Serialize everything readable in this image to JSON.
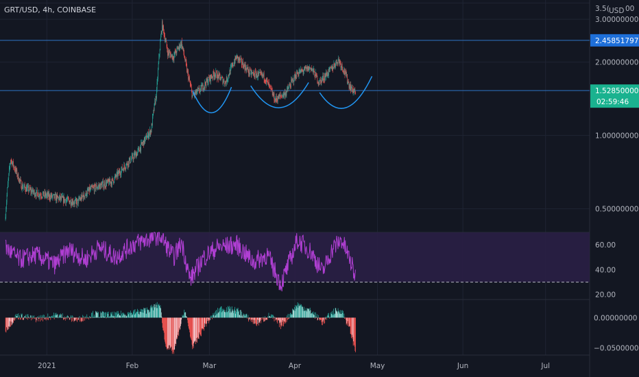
{
  "header": {
    "symbol_label": "GRT/USD, 4h, COINBASE"
  },
  "colors": {
    "background": "#131722",
    "grid": "#1f2433",
    "up": "#26a69a",
    "down": "#ef5350",
    "levels": "#2f75c6",
    "pattern": "#2196f3",
    "rsi_line": "#b03fd3",
    "rsi_band": "#2a1f45",
    "current_tag": "#1ab28f",
    "resistance_tag": "#1e6fd9"
  },
  "chart_data": [
    {
      "type": "candlestick",
      "currency": "USD",
      "y_ticks": [
        "3.5(",
        "3.00000000",
        "2.00000000",
        "1.00000000",
        "0.50000000"
      ],
      "y_tick_values": [
        3.5,
        3.0,
        2.0,
        1.0,
        0.5
      ],
      "currency_label": "USD",
      "currency_suffix": "00",
      "ylim": [
        0.4,
        3.6
      ],
      "scale": "log",
      "x_ticks": [
        "2021",
        "Feb",
        "Mar",
        "Apr",
        "May",
        "Jun",
        "Jul"
      ],
      "x_tick_dates": [
        "2021-01-01",
        "2021-02-01",
        "2021-03-01",
        "2021-04-01",
        "2021-05-01",
        "2021-06-01",
        "2021-07-01"
      ],
      "xlim": [
        "2020-12-15",
        "2021-07-17"
      ],
      "data_range": [
        "2020-12-17",
        "2021-04-23"
      ],
      "current_price": "1.52850000",
      "current_price_value": 1.5285,
      "countdown": "02:59:46",
      "resistance_price": "2.45851797",
      "resistance_value": 2.45851797,
      "support_value": 1.5285,
      "anchors": [
        {
          "date": "2020-12-17",
          "price": 0.45
        },
        {
          "date": "2020-12-19",
          "price": 0.8
        },
        {
          "date": "2020-12-23",
          "price": 0.62
        },
        {
          "date": "2020-12-28",
          "price": 0.58
        },
        {
          "date": "2021-01-06",
          "price": 0.55
        },
        {
          "date": "2021-01-12",
          "price": 0.53
        },
        {
          "date": "2021-01-17",
          "price": 0.6
        },
        {
          "date": "2021-01-25",
          "price": 0.65
        },
        {
          "date": "2021-02-03",
          "price": 0.85
        },
        {
          "date": "2021-02-08",
          "price": 1.05
        },
        {
          "date": "2021-02-10",
          "price": 1.5
        },
        {
          "date": "2021-02-12",
          "price": 2.85
        },
        {
          "date": "2021-02-14",
          "price": 2.2
        },
        {
          "date": "2021-02-16",
          "price": 2.1
        },
        {
          "date": "2021-02-19",
          "price": 2.4
        },
        {
          "date": "2021-02-21",
          "price": 1.85
        },
        {
          "date": "2021-02-23",
          "price": 1.45
        },
        {
          "date": "2021-02-26",
          "price": 1.55
        },
        {
          "date": "2021-03-03",
          "price": 1.8
        },
        {
          "date": "2021-03-07",
          "price": 1.65
        },
        {
          "date": "2021-03-11",
          "price": 2.1
        },
        {
          "date": "2021-03-16",
          "price": 1.8
        },
        {
          "date": "2021-03-21",
          "price": 1.75
        },
        {
          "date": "2021-03-25",
          "price": 1.4
        },
        {
          "date": "2021-03-29",
          "price": 1.5
        },
        {
          "date": "2021-04-02",
          "price": 1.8
        },
        {
          "date": "2021-04-07",
          "price": 1.9
        },
        {
          "date": "2021-04-10",
          "price": 1.65
        },
        {
          "date": "2021-04-14",
          "price": 1.85
        },
        {
          "date": "2021-04-17",
          "price": 2.05
        },
        {
          "date": "2021-04-19",
          "price": 1.85
        },
        {
          "date": "2021-04-21",
          "price": 1.6
        },
        {
          "date": "2021-04-23",
          "price": 1.5
        }
      ],
      "pattern_arcs": [
        {
          "start_date": "2021-02-23",
          "end_date": "2021-03-09",
          "start_price": 1.52,
          "low_price": 1.24,
          "end_price": 1.58
        },
        {
          "start_date": "2021-03-16",
          "end_date": "2021-04-06",
          "start_price": 1.6,
          "low_price": 1.3,
          "end_price": 1.65
        },
        {
          "start_date": "2021-04-10",
          "end_date": "2021-04-29",
          "start_price": 1.5,
          "low_price": 1.3,
          "end_price": 1.75
        }
      ]
    },
    {
      "type": "line",
      "indicator": "RSI",
      "y_ticks": [
        "60.00",
        "40.00",
        "20.00"
      ],
      "y_tick_values": [
        60,
        40,
        20
      ],
      "ylim": [
        16,
        70
      ],
      "reference_line": 30,
      "band": [
        30,
        70
      ],
      "anchors": [
        {
          "date": "2020-12-17",
          "value": 58
        },
        {
          "date": "2020-12-22",
          "value": 48
        },
        {
          "date": "2020-12-28",
          "value": 52
        },
        {
          "date": "2021-01-04",
          "value": 44
        },
        {
          "date": "2021-01-09",
          "value": 56
        },
        {
          "date": "2021-01-15",
          "value": 48
        },
        {
          "date": "2021-01-20",
          "value": 58
        },
        {
          "date": "2021-01-26",
          "value": 50
        },
        {
          "date": "2021-02-01",
          "value": 60
        },
        {
          "date": "2021-02-06",
          "value": 64
        },
        {
          "date": "2021-02-11",
          "value": 68
        },
        {
          "date": "2021-02-16",
          "value": 50
        },
        {
          "date": "2021-02-19",
          "value": 62
        },
        {
          "date": "2021-02-22",
          "value": 32
        },
        {
          "date": "2021-02-27",
          "value": 50
        },
        {
          "date": "2021-03-04",
          "value": 58
        },
        {
          "date": "2021-03-11",
          "value": 60
        },
        {
          "date": "2021-03-17",
          "value": 46
        },
        {
          "date": "2021-03-22",
          "value": 52
        },
        {
          "date": "2021-03-27",
          "value": 28
        },
        {
          "date": "2021-04-02",
          "value": 64
        },
        {
          "date": "2021-04-07",
          "value": 54
        },
        {
          "date": "2021-04-11",
          "value": 38
        },
        {
          "date": "2021-04-15",
          "value": 58
        },
        {
          "date": "2021-04-18",
          "value": 64
        },
        {
          "date": "2021-04-21",
          "value": 48
        },
        {
          "date": "2021-04-23",
          "value": 34
        }
      ]
    },
    {
      "type": "bar",
      "indicator": "momentum histogram",
      "y_ticks": [
        "0.00000000",
        "−0.05000000"
      ],
      "y_tick_values": [
        0,
        -0.05
      ],
      "ylim": [
        -0.062,
        0.03
      ],
      "anchors": [
        {
          "date": "2020-12-17",
          "value": -0.02
        },
        {
          "date": "2020-12-21",
          "value": 0.003
        },
        {
          "date": "2020-12-28",
          "value": -0.002
        },
        {
          "date": "2021-01-05",
          "value": 0.004
        },
        {
          "date": "2021-01-12",
          "value": -0.004
        },
        {
          "date": "2021-01-18",
          "value": 0.006
        },
        {
          "date": "2021-01-25",
          "value": 0.004
        },
        {
          "date": "2021-02-01",
          "value": 0.008
        },
        {
          "date": "2021-02-06",
          "value": 0.012
        },
        {
          "date": "2021-02-11",
          "value": 0.022
        },
        {
          "date": "2021-02-13",
          "value": -0.045
        },
        {
          "date": "2021-02-16",
          "value": -0.058
        },
        {
          "date": "2021-02-20",
          "value": 0.014
        },
        {
          "date": "2021-02-23",
          "value": -0.05
        },
        {
          "date": "2021-02-28",
          "value": -0.008
        },
        {
          "date": "2021-03-05",
          "value": 0.015
        },
        {
          "date": "2021-03-11",
          "value": 0.012
        },
        {
          "date": "2021-03-18",
          "value": -0.01
        },
        {
          "date": "2021-03-23",
          "value": 0.004
        },
        {
          "date": "2021-03-27",
          "value": -0.014
        },
        {
          "date": "2021-04-02",
          "value": 0.022
        },
        {
          "date": "2021-04-07",
          "value": 0.01
        },
        {
          "date": "2021-04-11",
          "value": -0.008
        },
        {
          "date": "2021-04-15",
          "value": 0.01
        },
        {
          "date": "2021-04-18",
          "value": 0.012
        },
        {
          "date": "2021-04-21",
          "value": -0.02
        },
        {
          "date": "2021-04-23",
          "value": -0.055
        }
      ]
    }
  ]
}
